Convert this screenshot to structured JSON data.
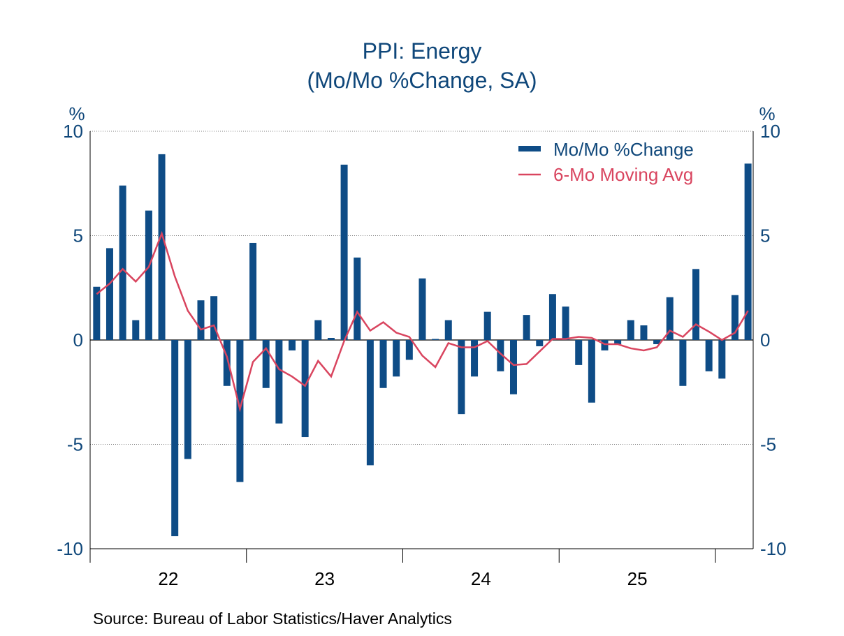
{
  "chart_data": {
    "type": "bar",
    "title": "PPI: Energy",
    "subtitle": "(Mo/Mo %Change, SA)",
    "ylabel_left": "%",
    "ylabel_right": "%",
    "ylim": [
      -10,
      10
    ],
    "yticks": [
      10,
      5,
      0,
      -5,
      -10
    ],
    "ytick_labels": [
      "10",
      "5",
      "0",
      "-5",
      "-10"
    ],
    "xtick_labels": [
      "22",
      "23",
      "24",
      "25"
    ],
    "grid": "horizontal dotted",
    "legend_position": "top-right",
    "colors": {
      "bars": "#0e4c86",
      "line": "#d9455f",
      "text": "#0f477a"
    },
    "x": [
      "2022-01",
      "2022-02",
      "2022-03",
      "2022-04",
      "2022-05",
      "2022-06",
      "2022-07",
      "2022-08",
      "2022-09",
      "2022-10",
      "2022-11",
      "2022-12",
      "2023-01",
      "2023-02",
      "2023-03",
      "2023-04",
      "2023-05",
      "2023-06",
      "2023-07",
      "2023-08",
      "2023-09",
      "2023-10",
      "2023-11",
      "2023-12",
      "2024-01",
      "2024-02",
      "2024-03",
      "2024-04",
      "2024-05",
      "2024-06",
      "2024-07",
      "2024-08",
      "2024-09",
      "2024-10",
      "2024-11",
      "2024-12",
      "2025-01",
      "2025-02",
      "2025-03",
      "2025-04",
      "2025-05",
      "2025-06",
      "2025-07",
      "2025-08",
      "2025-09",
      "2025-10",
      "2025-11",
      "2025-12",
      "2026-01",
      "2026-02",
      "2026-03"
    ],
    "series": [
      {
        "name": "Mo/Mo %Change",
        "type": "bar",
        "values": [
          2.55,
          4.4,
          7.4,
          0.95,
          6.2,
          8.9,
          -9.4,
          -5.7,
          1.9,
          2.1,
          -2.2,
          -6.8,
          4.65,
          -2.3,
          -4.0,
          -0.5,
          -4.65,
          0.95,
          0.1,
          8.4,
          3.95,
          -6.0,
          -2.3,
          -1.75,
          -0.95,
          2.95,
          0.05,
          0.95,
          -3.55,
          -1.75,
          1.35,
          -1.5,
          -2.6,
          1.2,
          -0.3,
          2.2,
          1.6,
          -1.2,
          -3.0,
          -0.5,
          -0.2,
          0.95,
          0.7,
          -0.2,
          2.05,
          -2.2,
          3.4,
          -1.5,
          -1.85,
          2.15,
          8.45
        ]
      },
      {
        "name": "6-Mo Moving Avg",
        "type": "line",
        "values": [
          2.2,
          2.7,
          3.4,
          2.8,
          3.5,
          5.1,
          3.05,
          1.4,
          0.5,
          0.7,
          -0.8,
          -3.3,
          -1.05,
          -0.4,
          -1.4,
          -1.75,
          -2.2,
          -1.0,
          -1.75,
          -0.05,
          1.35,
          0.45,
          0.85,
          0.35,
          0.15,
          -0.75,
          -1.3,
          -0.15,
          -0.35,
          -0.35,
          -0.05,
          -0.65,
          -1.2,
          -1.15,
          -0.55,
          0.05,
          0.05,
          0.15,
          0.1,
          -0.2,
          -0.2,
          -0.4,
          -0.5,
          -0.35,
          0.45,
          0.15,
          0.75,
          0.4,
          0.0,
          0.35,
          1.4
        ]
      }
    ]
  },
  "source": "Source:  Bureau of Labor Statistics/Haver Analytics"
}
